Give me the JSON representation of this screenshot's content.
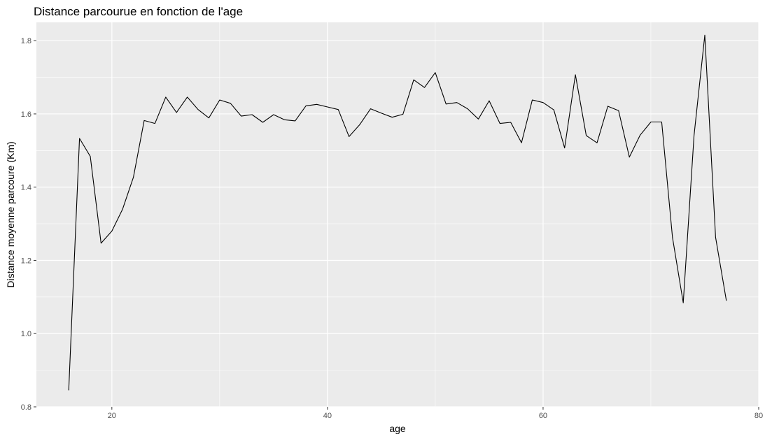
{
  "chart_data": {
    "type": "line",
    "title": "Distance parcourue en fonction de l'age",
    "xlabel": "age",
    "ylabel": "Distance moyenne parcoure (Km)",
    "xlim": [
      13,
      80
    ],
    "ylim": [
      0.8,
      1.85
    ],
    "x_ticks": [
      20,
      40,
      60,
      80
    ],
    "y_ticks": [
      0.8,
      1.0,
      1.2,
      1.4,
      1.6,
      1.8
    ],
    "x_tick_labels": [
      "20",
      "40",
      "60",
      "80"
    ],
    "y_tick_labels": [
      "0.8",
      "1.0",
      "1.2",
      "1.4",
      "1.6",
      "1.8"
    ],
    "grid": true,
    "legend": "none",
    "colors": {
      "panel": "#ebebeb",
      "grid": "#ffffff",
      "line": "#000000",
      "tick_text": "#4d4d4d"
    },
    "series": [
      {
        "x": [
          16,
          17,
          18,
          19,
          20,
          21,
          22,
          23,
          24,
          25,
          26,
          27,
          28,
          29,
          30,
          31,
          32,
          33,
          34,
          35,
          36,
          37,
          38,
          39,
          40,
          41,
          42,
          43,
          44,
          45,
          46,
          47,
          48,
          49,
          50,
          51,
          52,
          53,
          54,
          55,
          56,
          57,
          58,
          59,
          60,
          61,
          62,
          63,
          64,
          65,
          66,
          67,
          68,
          69,
          70,
          71,
          72,
          73,
          74,
          75,
          76,
          77
        ],
        "values": [
          0.845,
          1.533,
          1.484,
          1.247,
          1.28,
          1.34,
          1.427,
          1.582,
          1.574,
          1.646,
          1.604,
          1.646,
          1.612,
          1.589,
          1.638,
          1.629,
          1.594,
          1.598,
          1.577,
          1.598,
          1.584,
          1.581,
          1.622,
          1.626,
          1.619,
          1.612,
          1.538,
          1.571,
          1.614,
          1.602,
          1.591,
          1.599,
          1.693,
          1.672,
          1.713,
          1.627,
          1.631,
          1.614,
          1.586,
          1.636,
          1.574,
          1.577,
          1.521,
          1.638,
          1.631,
          1.611,
          1.507,
          1.707,
          1.541,
          1.521,
          1.621,
          1.609,
          1.482,
          1.542,
          1.578,
          1.578,
          1.263,
          1.084,
          1.541,
          1.815,
          1.263,
          1.09
        ]
      }
    ]
  }
}
